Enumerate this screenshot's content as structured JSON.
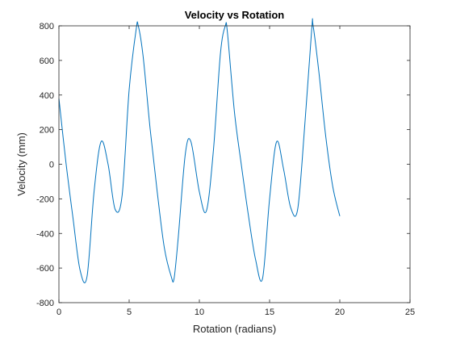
{
  "chart_data": {
    "type": "line",
    "title": "Velocity vs Rotation",
    "xlabel": "Rotation (radians)",
    "ylabel": "Velocity (mm)",
    "xlim": [
      0,
      25
    ],
    "ylim": [
      -800,
      800
    ],
    "xticks": [
      0,
      5,
      10,
      15,
      20,
      25
    ],
    "yticks": [
      -800,
      -600,
      -400,
      -200,
      0,
      200,
      400,
      600,
      800
    ],
    "grid": false,
    "legend": "none",
    "line_color": "#0072BD",
    "series": [
      {
        "x": [
          0,
          0.5,
          1.0,
          1.5,
          2.0,
          2.5,
          3.0,
          3.5,
          4.0,
          4.5,
          5.0,
          5.5,
          5.65,
          6.0,
          6.5,
          7.0,
          7.5,
          8.0,
          8.2,
          8.5,
          9.0,
          9.4,
          10.0,
          10.5,
          11.0,
          11.5,
          11.85,
          12.0,
          12.5,
          13.0,
          13.5,
          14.0,
          14.5,
          15.0,
          15.5,
          16.0,
          16.5,
          17.0,
          17.5,
          18.0,
          18.1,
          18.5,
          19.0,
          19.5,
          20.0
        ],
        "y": [
          380,
          10,
          -310,
          -610,
          -650,
          -160,
          130,
          0,
          -260,
          -180,
          430,
          780,
          800,
          620,
          200,
          -160,
          -480,
          -650,
          -660,
          -420,
          60,
          130,
          -160,
          -270,
          80,
          640,
          800,
          760,
          300,
          -10,
          -300,
          -550,
          -660,
          -200,
          130,
          -30,
          -250,
          -260,
          220,
          780,
          800,
          540,
          160,
          -130,
          -300
        ]
      }
    ]
  }
}
